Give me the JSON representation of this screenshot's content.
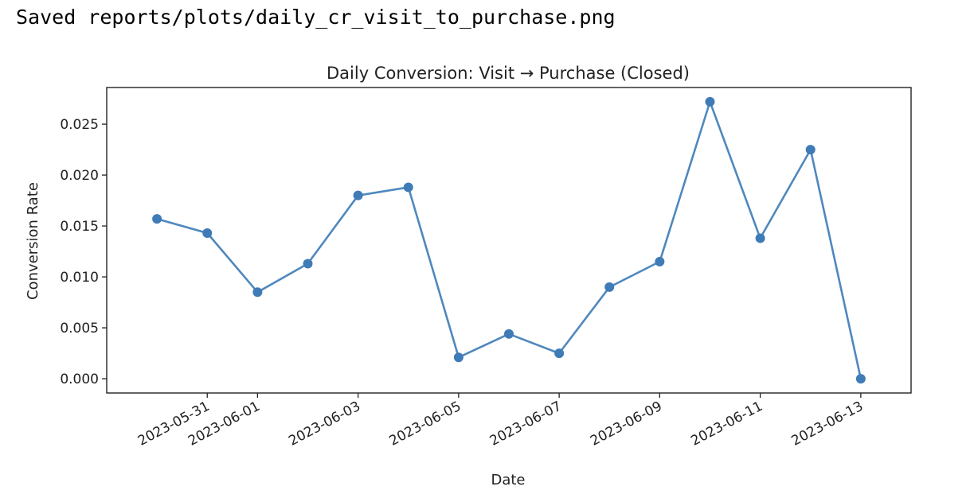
{
  "output": {
    "text": "Saved reports/plots/daily_cr_visit_to_purchase.png"
  },
  "chart_data": {
    "type": "line",
    "title": "Daily Conversion: Visit → Purchase (Closed)",
    "xlabel": "Date",
    "ylabel": "Conversion Rate",
    "x": [
      "2023-05-30",
      "2023-05-31",
      "2023-06-01",
      "2023-06-02",
      "2023-06-03",
      "2023-06-04",
      "2023-06-05",
      "2023-06-06",
      "2023-06-07",
      "2023-06-08",
      "2023-06-09",
      "2023-06-10",
      "2023-06-11",
      "2023-06-12",
      "2023-06-13"
    ],
    "series": [
      {
        "values": [
          0.0157,
          0.0143,
          0.0085,
          0.0113,
          0.018,
          0.0188,
          0.0021,
          0.0044,
          0.0025,
          0.009,
          0.0115,
          0.0272,
          0.0138,
          0.0225,
          0.0
        ]
      }
    ],
    "x_ticks": [
      "2023-05-31",
      "2023-06-01",
      "2023-06-03",
      "2023-06-05",
      "2023-06-07",
      "2023-06-09",
      "2023-06-11",
      "2023-06-13"
    ],
    "y_ticks": [
      "0.000",
      "0.005",
      "0.010",
      "0.015",
      "0.020",
      "0.025"
    ],
    "ylim": [
      -0.0014,
      0.0286
    ],
    "xlim": [
      "2023-05-29",
      "2023-06-14"
    ],
    "grid": false,
    "line_color": "#4f88bd",
    "marker_color": "#3f7bb6"
  }
}
